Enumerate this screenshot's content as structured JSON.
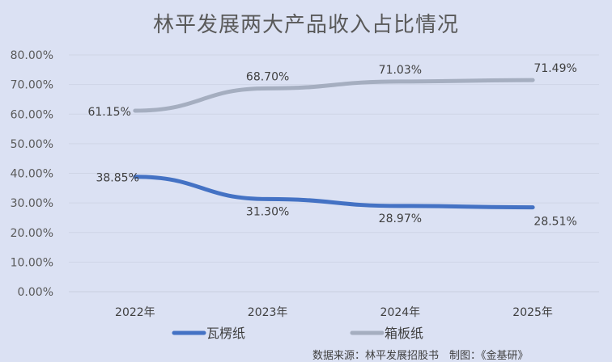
{
  "title": "林平发展两大产品收入占比情况",
  "footer": "数据来源：林平发展招股书　制图：《金基研》",
  "colors": {
    "background": "#dbe1f3",
    "series_blue": "#4472c4",
    "series_grey": "#a5aec0",
    "gridline": "#cfd5e6"
  },
  "legend": [
    {
      "label": "瓦楞纸",
      "color": "#4472c4"
    },
    {
      "label": "箱板纸",
      "color": "#a5aec0"
    }
  ],
  "chart_data": {
    "type": "line",
    "title": "林平发展两大产品收入占比情况",
    "categories": [
      "2022年",
      "2023年",
      "2024年",
      "2025年"
    ],
    "series": [
      {
        "name": "瓦楞纸",
        "values": [
          38.85,
          31.3,
          28.97,
          28.51
        ],
        "labels": [
          "38.85%",
          "31.30%",
          "28.97%",
          "28.51%"
        ]
      },
      {
        "name": "箱板纸",
        "values": [
          61.15,
          68.7,
          71.03,
          71.49
        ],
        "labels": [
          "61.15%",
          "68.70%",
          "71.03%",
          "71.49%"
        ]
      }
    ],
    "xlabel": "",
    "ylabel": "",
    "ylim": [
      0,
      80
    ],
    "yticks": [
      "0.00%",
      "10.00%",
      "20.00%",
      "30.00%",
      "40.00%",
      "50.00%",
      "60.00%",
      "70.00%",
      "80.00%"
    ],
    "grid": true,
    "legend_position": "bottom"
  }
}
